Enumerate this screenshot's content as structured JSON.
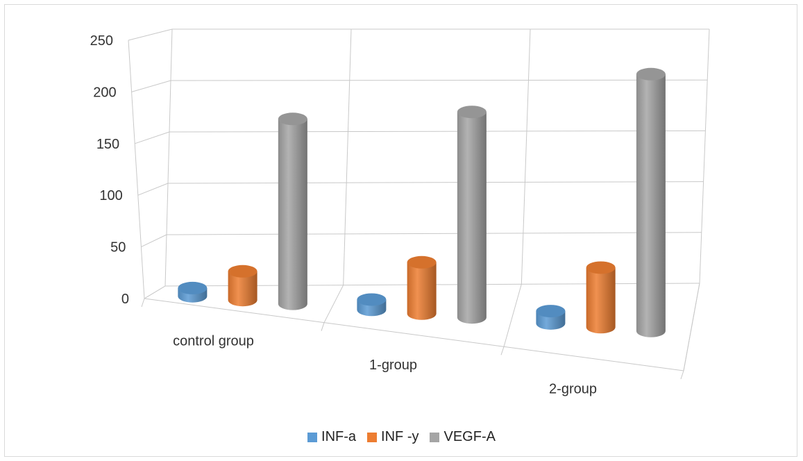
{
  "chart_data": {
    "type": "bar",
    "style": "3d-cylinder",
    "title": "",
    "xlabel": "",
    "ylabel": "",
    "categories": [
      "control group",
      "1-group",
      "2-group"
    ],
    "ylim": [
      0,
      250
    ],
    "yticks": [
      "0",
      "50",
      "100",
      "150",
      "200",
      "250"
    ],
    "series": [
      {
        "name": "INF-a",
        "color": "#5b9bd5",
        "values": [
          8,
          10,
          12
        ]
      },
      {
        "name": "INF -y",
        "color": "#ed7d31",
        "values": [
          28,
          50,
          58
        ]
      },
      {
        "name": "VEGF-A",
        "color": "#a5a5a5",
        "values": [
          180,
          200,
          250
        ]
      }
    ],
    "grid": true,
    "legend_position": "bottom"
  }
}
